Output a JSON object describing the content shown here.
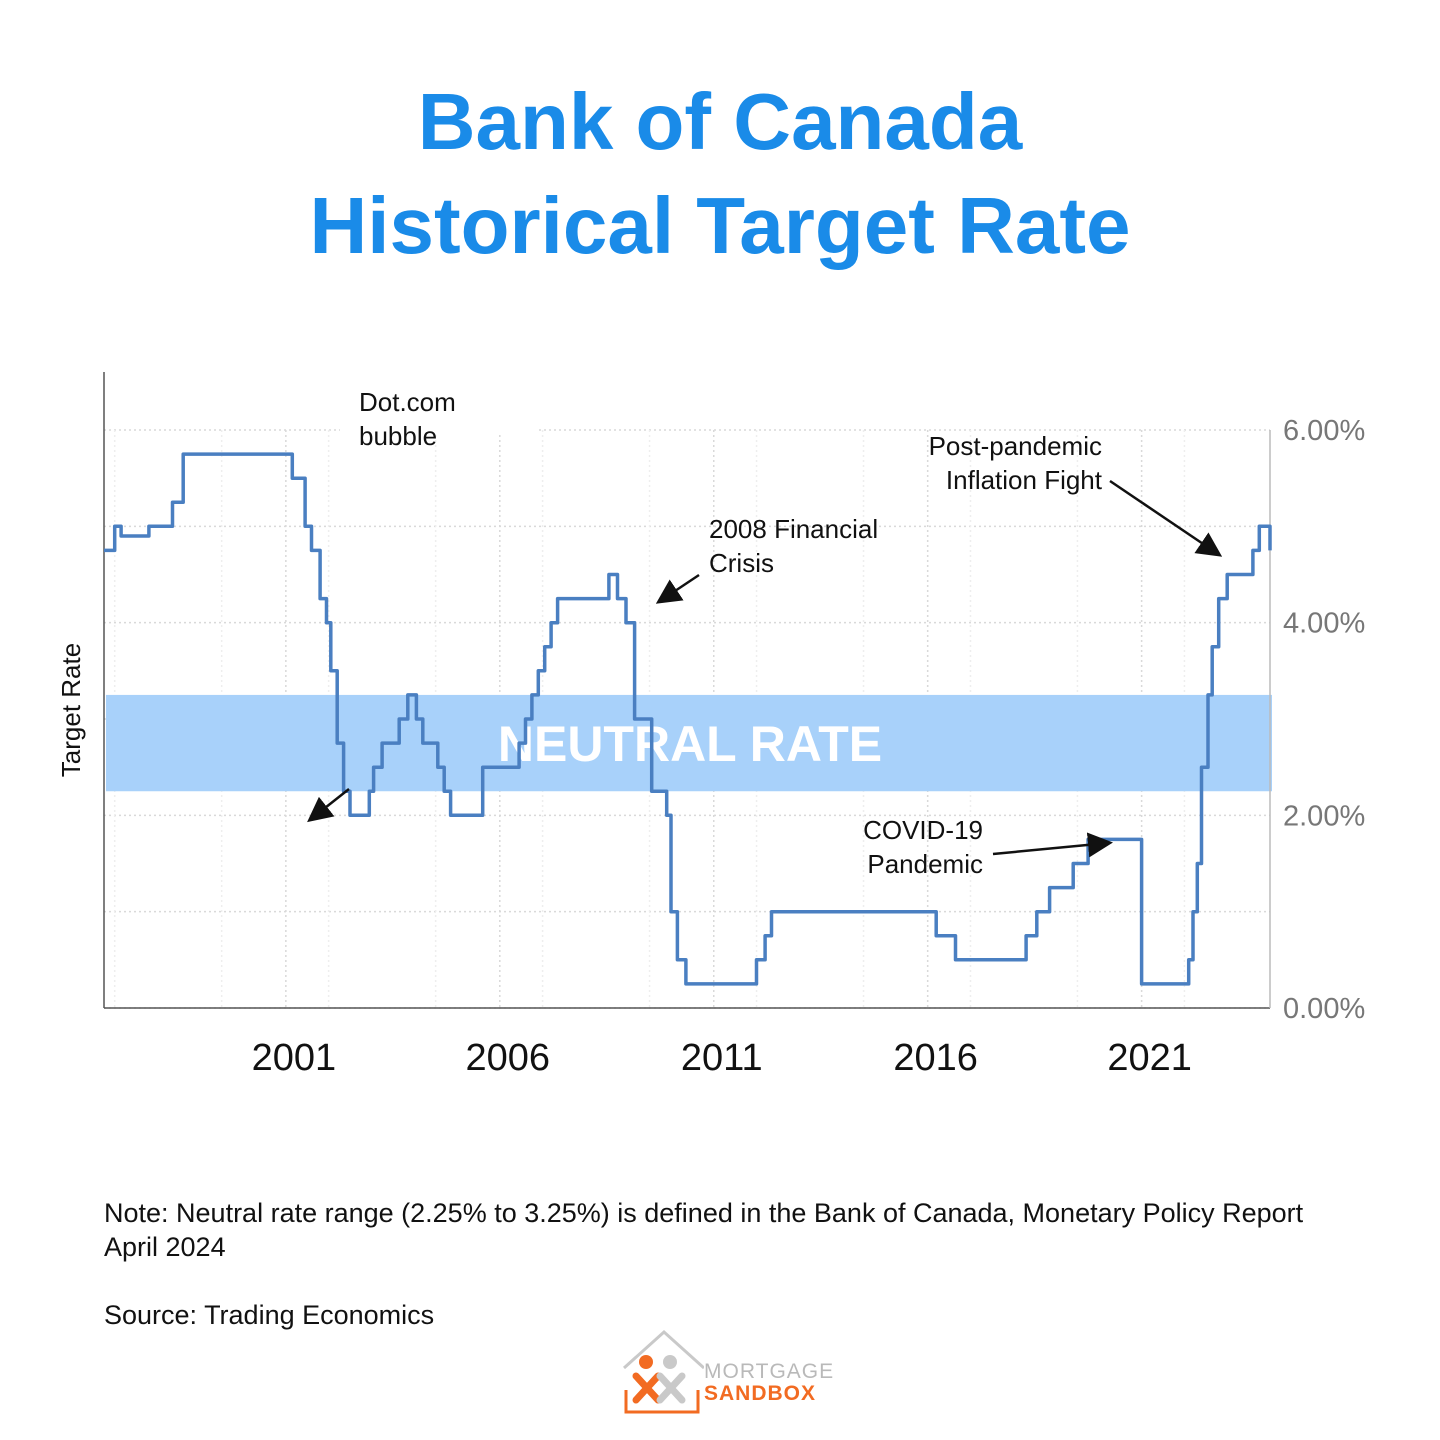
{
  "title": {
    "line1": "Bank of Canada",
    "line2": "Historical Target Rate"
  },
  "colors": {
    "title": "#1a8be8",
    "line": "#4a7fc1",
    "neutral_band": "#a8d1fa",
    "neutral_text": "#ffffff",
    "grid": "#d9d9d9",
    "logo_orange": "#f26b22",
    "logo_gray": "#b9b9b9"
  },
  "chart_data": {
    "type": "line",
    "ylabel": "Target Rate",
    "xlabel": "",
    "xlim": [
      1996.75,
      2024.0
    ],
    "ylim": [
      0,
      6
    ],
    "y_axis_side": "right",
    "y_ticks": [
      0,
      2,
      4,
      6
    ],
    "y_tick_labels": [
      "0.00%",
      "2.00%",
      "4.00%",
      "6.00%"
    ],
    "x_ticks": [
      2001,
      2006,
      2011,
      2016,
      2021
    ],
    "x_tick_labels": [
      "2001",
      "2006",
      "2011",
      "2016",
      "2021"
    ],
    "grid": true,
    "band": {
      "from": 2.25,
      "to": 3.25,
      "label": "NEUTRAL RATE"
    },
    "series": [
      {
        "x": [
          1996.75,
          1996.9,
          1997.0,
          1997.15,
          1997.3,
          1997.5,
          1997.6,
          1997.8,
          1997.9,
          1998.0,
          1998.2,
          1998.35,
          1998.5,
          1998.6,
          1998.8,
          1998.95,
          1999.2,
          1999.4,
          1999.6,
          1999.9,
          2000.1,
          2000.3,
          2000.5,
          2000.7,
          2000.9,
          2001.05,
          2001.15,
          2001.25,
          2001.45,
          2001.6,
          2001.8,
          2001.95,
          2002.05,
          2002.2,
          2002.35,
          2002.5,
          2002.7,
          2002.95,
          2003.05,
          2003.25,
          2003.45,
          2003.65,
          2003.85,
          2004.05,
          2004.2,
          2004.35,
          2004.55,
          2004.7,
          2004.85,
          2005.05,
          2005.25,
          2005.6,
          2005.8,
          2006.0,
          2006.3,
          2006.45,
          2006.6,
          2006.75,
          2006.9,
          2007.05,
          2007.2,
          2007.35,
          2007.55,
          2007.95,
          2008.3,
          2008.55,
          2008.75,
          2008.95,
          2009.15,
          2009.35,
          2009.55,
          2009.75,
          2009.9,
          2010.0,
          2010.15,
          2010.35,
          2010.55,
          2010.7,
          2010.85,
          2011.05,
          2011.4,
          2011.75,
          2012.0,
          2012.2,
          2012.35,
          2012.5,
          2012.7,
          2013.0,
          2013.5,
          2014.0,
          2014.5,
          2015.0,
          2015.5,
          2016.0,
          2016.2,
          2016.4,
          2016.65,
          2017.0,
          2017.5,
          2017.95,
          2018.1,
          2018.3,
          2018.55,
          2018.85,
          2019.05,
          2019.4,
          2019.75,
          2020.0,
          2020.25,
          2020.4,
          2020.55,
          2020.75,
          2021.0,
          2021.5,
          2021.9,
          2022.0,
          2022.1,
          2022.2,
          2022.3,
          2022.4,
          2022.55,
          2022.65,
          2022.8,
          2023.0,
          2023.3,
          2023.6,
          2023.75,
          2023.9,
          2023.98,
          2024.0
        ],
        "values": [
          4.75,
          4.75,
          5.0,
          4.9,
          4.9,
          4.9,
          4.9,
          5.0,
          5.0,
          5.0,
          5.0,
          5.25,
          5.25,
          5.75,
          5.75,
          5.75,
          5.75,
          5.75,
          5.75,
          5.75,
          5.75,
          5.75,
          5.75,
          5.75,
          5.75,
          5.75,
          5.5,
          5.5,
          5.0,
          4.75,
          4.25,
          4.0,
          3.5,
          2.75,
          2.25,
          2.0,
          2.0,
          2.25,
          2.5,
          2.75,
          2.75,
          3.0,
          3.25,
          3.0,
          2.75,
          2.75,
          2.5,
          2.25,
          2.0,
          2.0,
          2.0,
          2.5,
          2.5,
          2.5,
          2.5,
          2.75,
          3.0,
          3.25,
          3.5,
          3.75,
          4.0,
          4.25,
          4.25,
          4.25,
          4.25,
          4.5,
          4.25,
          4.0,
          3.0,
          3.0,
          2.25,
          2.25,
          2.0,
          1.0,
          0.5,
          0.25,
          0.25,
          0.25,
          0.25,
          0.25,
          0.25,
          0.25,
          0.5,
          0.75,
          1.0,
          1.0,
          1.0,
          1.0,
          1.0,
          1.0,
          1.0,
          1.0,
          1.0,
          1.0,
          0.75,
          0.75,
          0.5,
          0.5,
          0.5,
          0.5,
          0.5,
          0.75,
          1.0,
          1.25,
          1.25,
          1.5,
          1.75,
          1.75,
          1.75,
          1.75,
          1.75,
          1.75,
          0.25,
          0.25,
          0.25,
          0.25,
          0.5,
          1.0,
          1.5,
          2.5,
          3.25,
          3.75,
          4.25,
          4.5,
          4.5,
          4.75,
          5.0,
          5.0,
          5.0,
          4.75
        ]
      }
    ],
    "annotations": [
      {
        "lines": [
          "Dot.com",
          "bubble"
        ]
      },
      {
        "lines": [
          "2008 Financial",
          "Crisis"
        ]
      },
      {
        "lines": [
          "Post-pandemic",
          "Inflation Fight"
        ]
      },
      {
        "lines": [
          "COVID-19",
          "Pandemic"
        ]
      }
    ]
  },
  "note": {
    "line1": "Note: Neutral rate range (2.25% to 3.25%) is defined in the Bank of Canada, Monetary Policy Report",
    "line2": "April 2024"
  },
  "source": "Source: Trading Economics",
  "logo": {
    "line1": "MORTGAGE",
    "line2": "SANDBOX"
  }
}
